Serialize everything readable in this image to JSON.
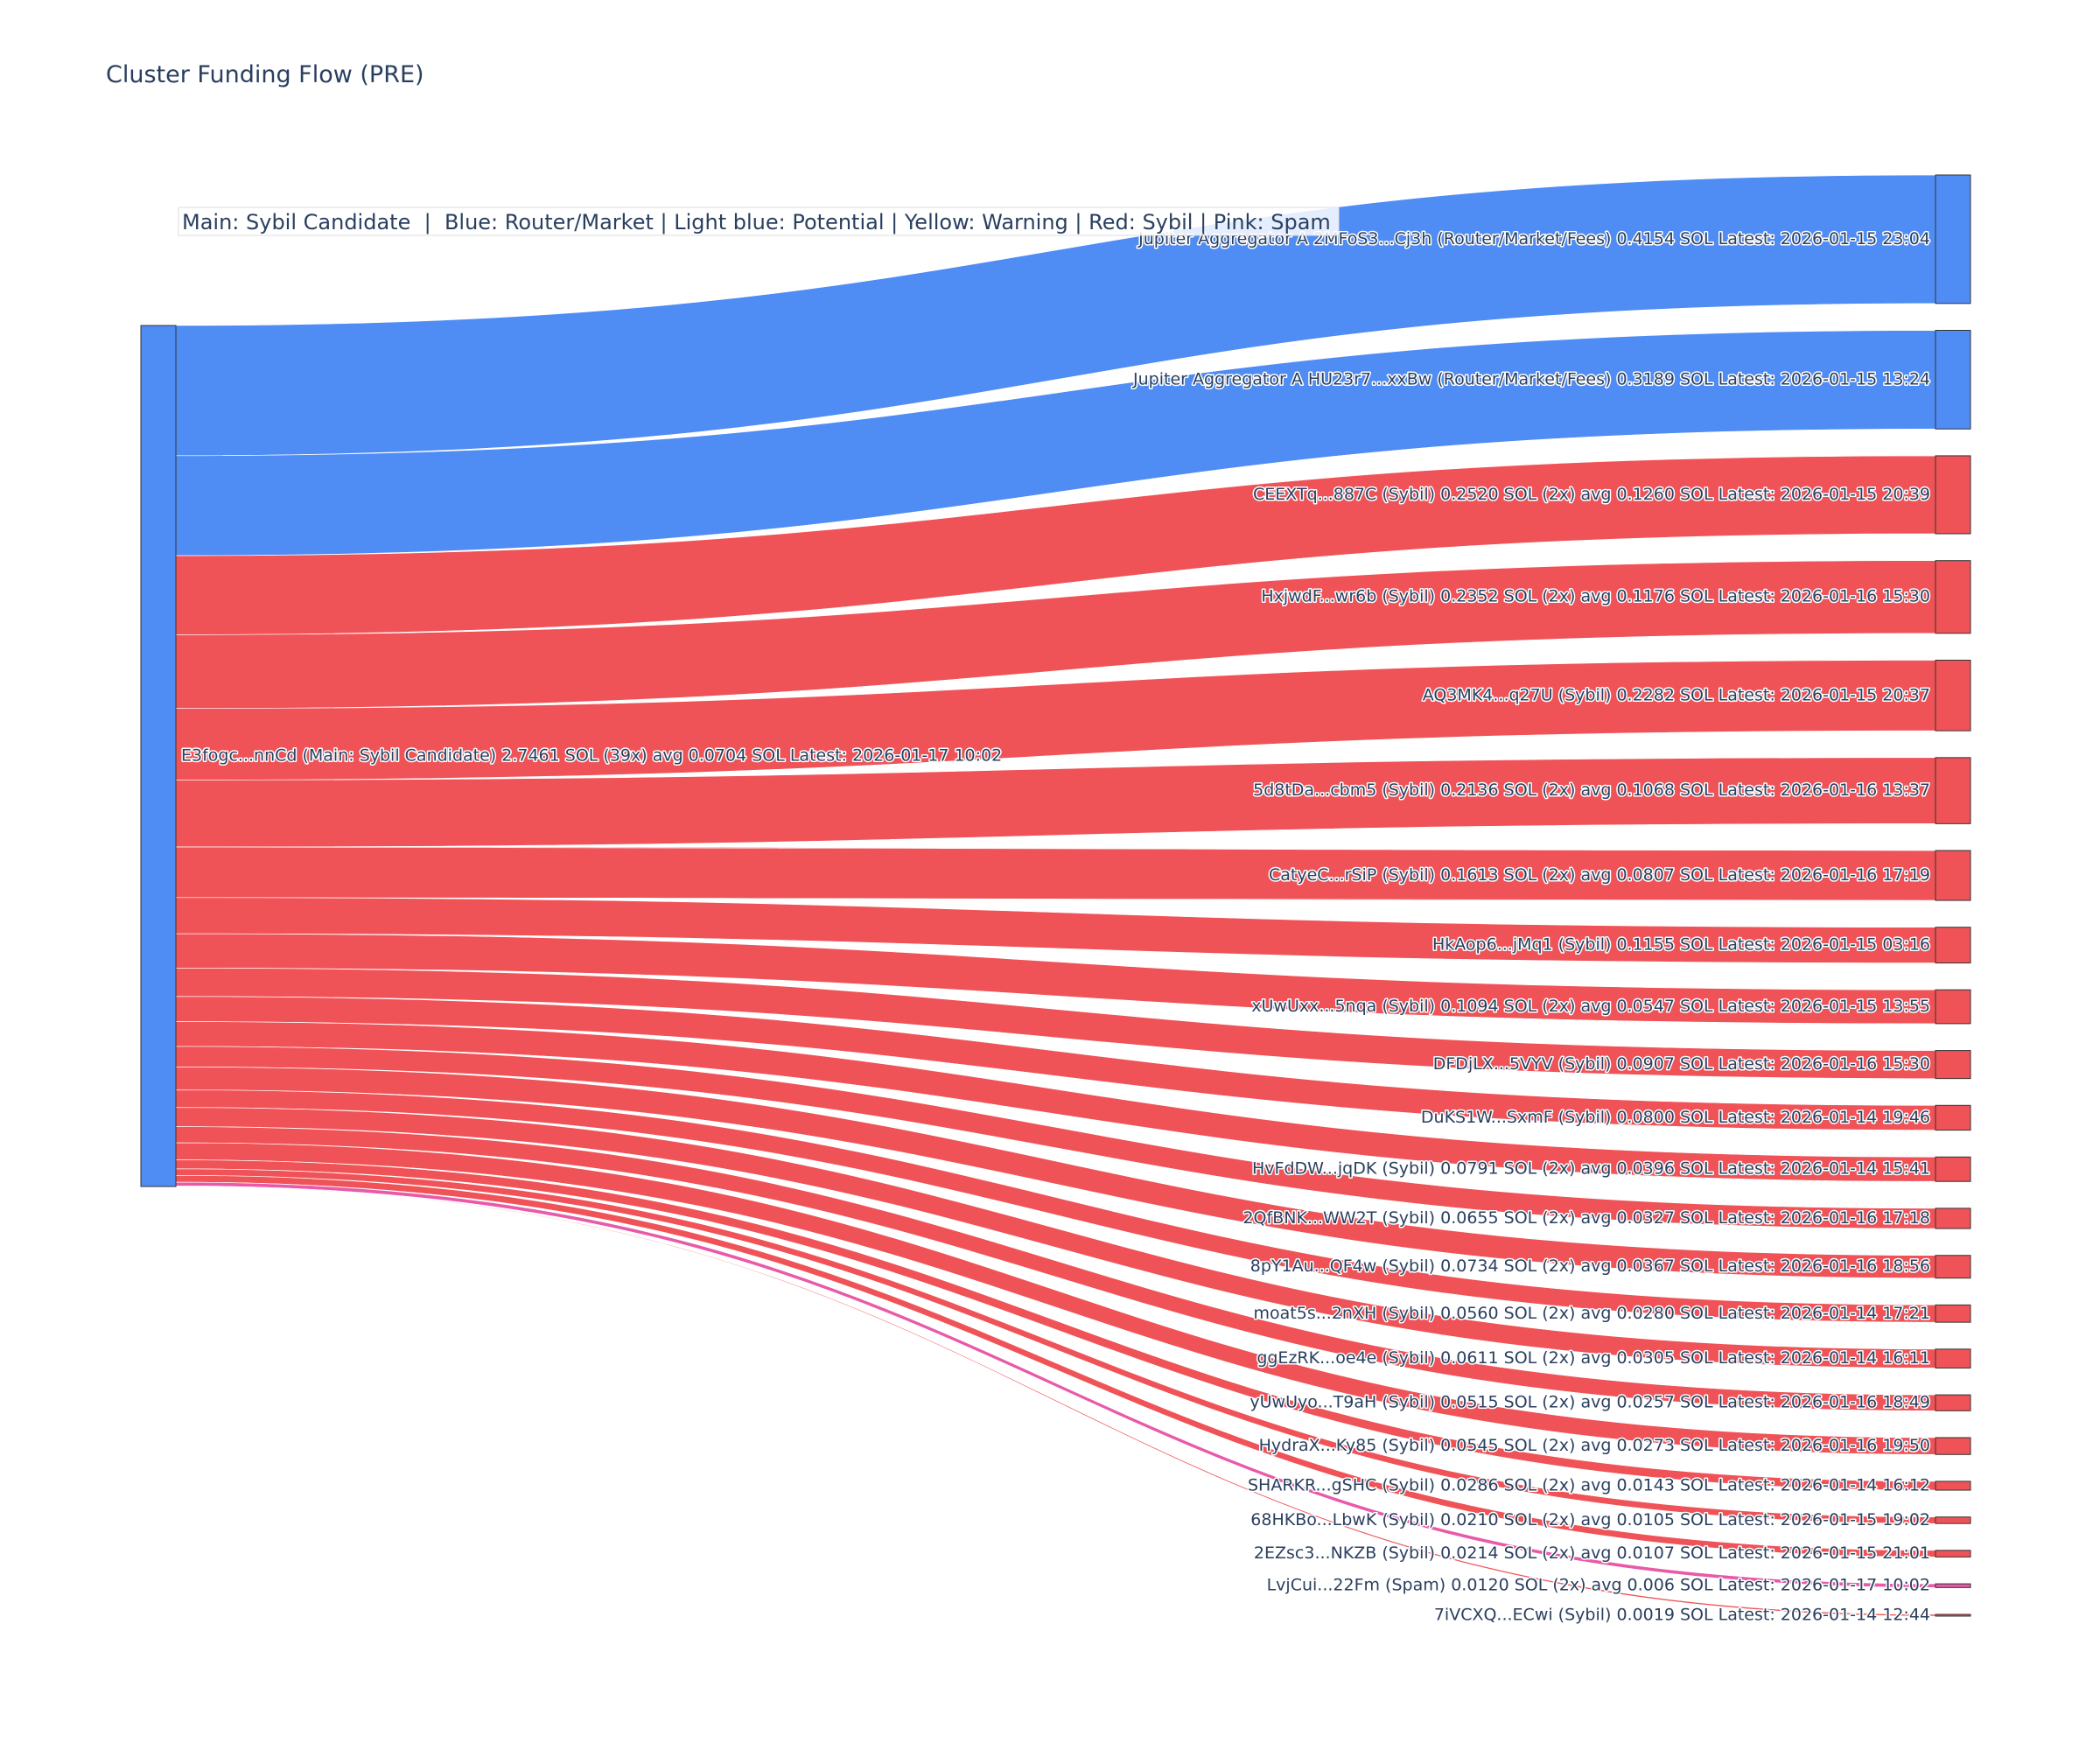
{
  "chart_data": {
    "type": "sankey",
    "title": "Cluster Funding Flow (PRE)",
    "legend_text": "Main: Sybil Candidate  |  Blue: Router/Market | Light blue: Potential | Yellow: Warning | Red: Sybil | Pink: Spam",
    "colors": {
      "main": "#4f8cf4",
      "router": "#4f8cf4",
      "potential": "#9ecbff",
      "warning": "#f4d24f",
      "sybil": "#ef5357",
      "spam": "#e85aa8"
    },
    "source": {
      "label": "E3fogc...nnCd (Main: Sybil Candidate) 2.7461 SOL (39x) avg 0.0704 SOL Latest: 2026-01-17 10:02",
      "category": "main",
      "total": 2.7461
    },
    "targets": [
      {
        "label": "Jupiter Aggregator A 2MFoS3...Cj3h (Router/Market/Fees) 0.4154 SOL Latest: 2026-01-15 23:04",
        "category": "router",
        "value": 0.4154
      },
      {
        "label": "Jupiter Aggregator A HU23r7...xxBw (Router/Market/Fees) 0.3189 SOL Latest: 2026-01-15 13:24",
        "category": "router",
        "value": 0.3189
      },
      {
        "label": "CEEXTq...887C (Sybil) 0.2520 SOL (2x) avg 0.1260 SOL Latest: 2026-01-15 20:39",
        "category": "sybil",
        "value": 0.252
      },
      {
        "label": "HxjwdF...wr6b (Sybil) 0.2352 SOL (2x) avg 0.1176 SOL Latest: 2026-01-16 15:30",
        "category": "sybil",
        "value": 0.2352
      },
      {
        "label": "AQ3MK4...q27U (Sybil) 0.2282 SOL Latest: 2026-01-15 20:37",
        "category": "sybil",
        "value": 0.2282
      },
      {
        "label": "5d8tDa...cbm5 (Sybil) 0.2136 SOL (2x) avg 0.1068 SOL Latest: 2026-01-16 13:37",
        "category": "sybil",
        "value": 0.2136
      },
      {
        "label": "CatyeC...rSiP (Sybil) 0.1613 SOL (2x) avg 0.0807 SOL Latest: 2026-01-16 17:19",
        "category": "sybil",
        "value": 0.1613
      },
      {
        "label": "HkAop6...jMq1 (Sybil) 0.1155 SOL Latest: 2026-01-15 03:16",
        "category": "sybil",
        "value": 0.1155
      },
      {
        "label": "xUwUxx...5nqa (Sybil) 0.1094 SOL (2x) avg 0.0547 SOL Latest: 2026-01-15 13:55",
        "category": "sybil",
        "value": 0.1094
      },
      {
        "label": "DFDjLX...5VYV (Sybil) 0.0907 SOL Latest: 2026-01-16 15:30",
        "category": "sybil",
        "value": 0.0907
      },
      {
        "label": "DuKS1W...SxmF (Sybil) 0.0800 SOL Latest: 2026-01-14 19:46",
        "category": "sybil",
        "value": 0.08
      },
      {
        "label": "HvFdDW...jqDK (Sybil) 0.0791 SOL (2x) avg 0.0396 SOL Latest: 2026-01-14 15:41",
        "category": "sybil",
        "value": 0.0791
      },
      {
        "label": "2QfBNK...WW2T (Sybil) 0.0655 SOL (2x) avg 0.0327 SOL Latest: 2026-01-16 17:18",
        "category": "sybil",
        "value": 0.0655
      },
      {
        "label": "8pY1Au...QF4w (Sybil) 0.0734 SOL (2x) avg 0.0367 SOL Latest: 2026-01-16 18:56",
        "category": "sybil",
        "value": 0.0734
      },
      {
        "label": "moat5s...2nXH (Sybil) 0.0560 SOL (2x) avg 0.0280 SOL Latest: 2026-01-14 17:21",
        "category": "sybil",
        "value": 0.056
      },
      {
        "label": "ggEzRK...oe4e (Sybil) 0.0611 SOL (2x) avg 0.0305 SOL Latest: 2026-01-14 16:11",
        "category": "sybil",
        "value": 0.0611
      },
      {
        "label": "yUwUyo...T9aH (Sybil) 0.0515 SOL (2x) avg 0.0257 SOL Latest: 2026-01-16 18:49",
        "category": "sybil",
        "value": 0.0515
      },
      {
        "label": "HydraX...Ky85 (Sybil) 0.0545 SOL (2x) avg 0.0273 SOL Latest: 2026-01-16 19:50",
        "category": "sybil",
        "value": 0.0545
      },
      {
        "label": "SHARKR...gSHC (Sybil) 0.0286 SOL (2x) avg 0.0143 SOL Latest: 2026-01-14 16:12",
        "category": "sybil",
        "value": 0.0286
      },
      {
        "label": "68HKBo...LbwK (Sybil) 0.0210 SOL (2x) avg 0.0105 SOL Latest: 2026-01-15 19:02",
        "category": "sybil",
        "value": 0.021
      },
      {
        "label": "2EZsc3...NKZB (Sybil) 0.0214 SOL (2x) avg 0.0107 SOL Latest: 2026-01-15 21:01",
        "category": "sybil",
        "value": 0.0214
      },
      {
        "label": "LvjCui...22Fm (Spam) 0.0120 SOL (2x) avg 0.006 SOL Latest: 2026-01-17 10:02",
        "category": "spam",
        "value": 0.012
      },
      {
        "label": "7iVCXQ...ECwi (Sybil) 0.0019 SOL Latest: 2026-01-14 12:44",
        "category": "sybil",
        "value": 0.0019
      }
    ]
  }
}
